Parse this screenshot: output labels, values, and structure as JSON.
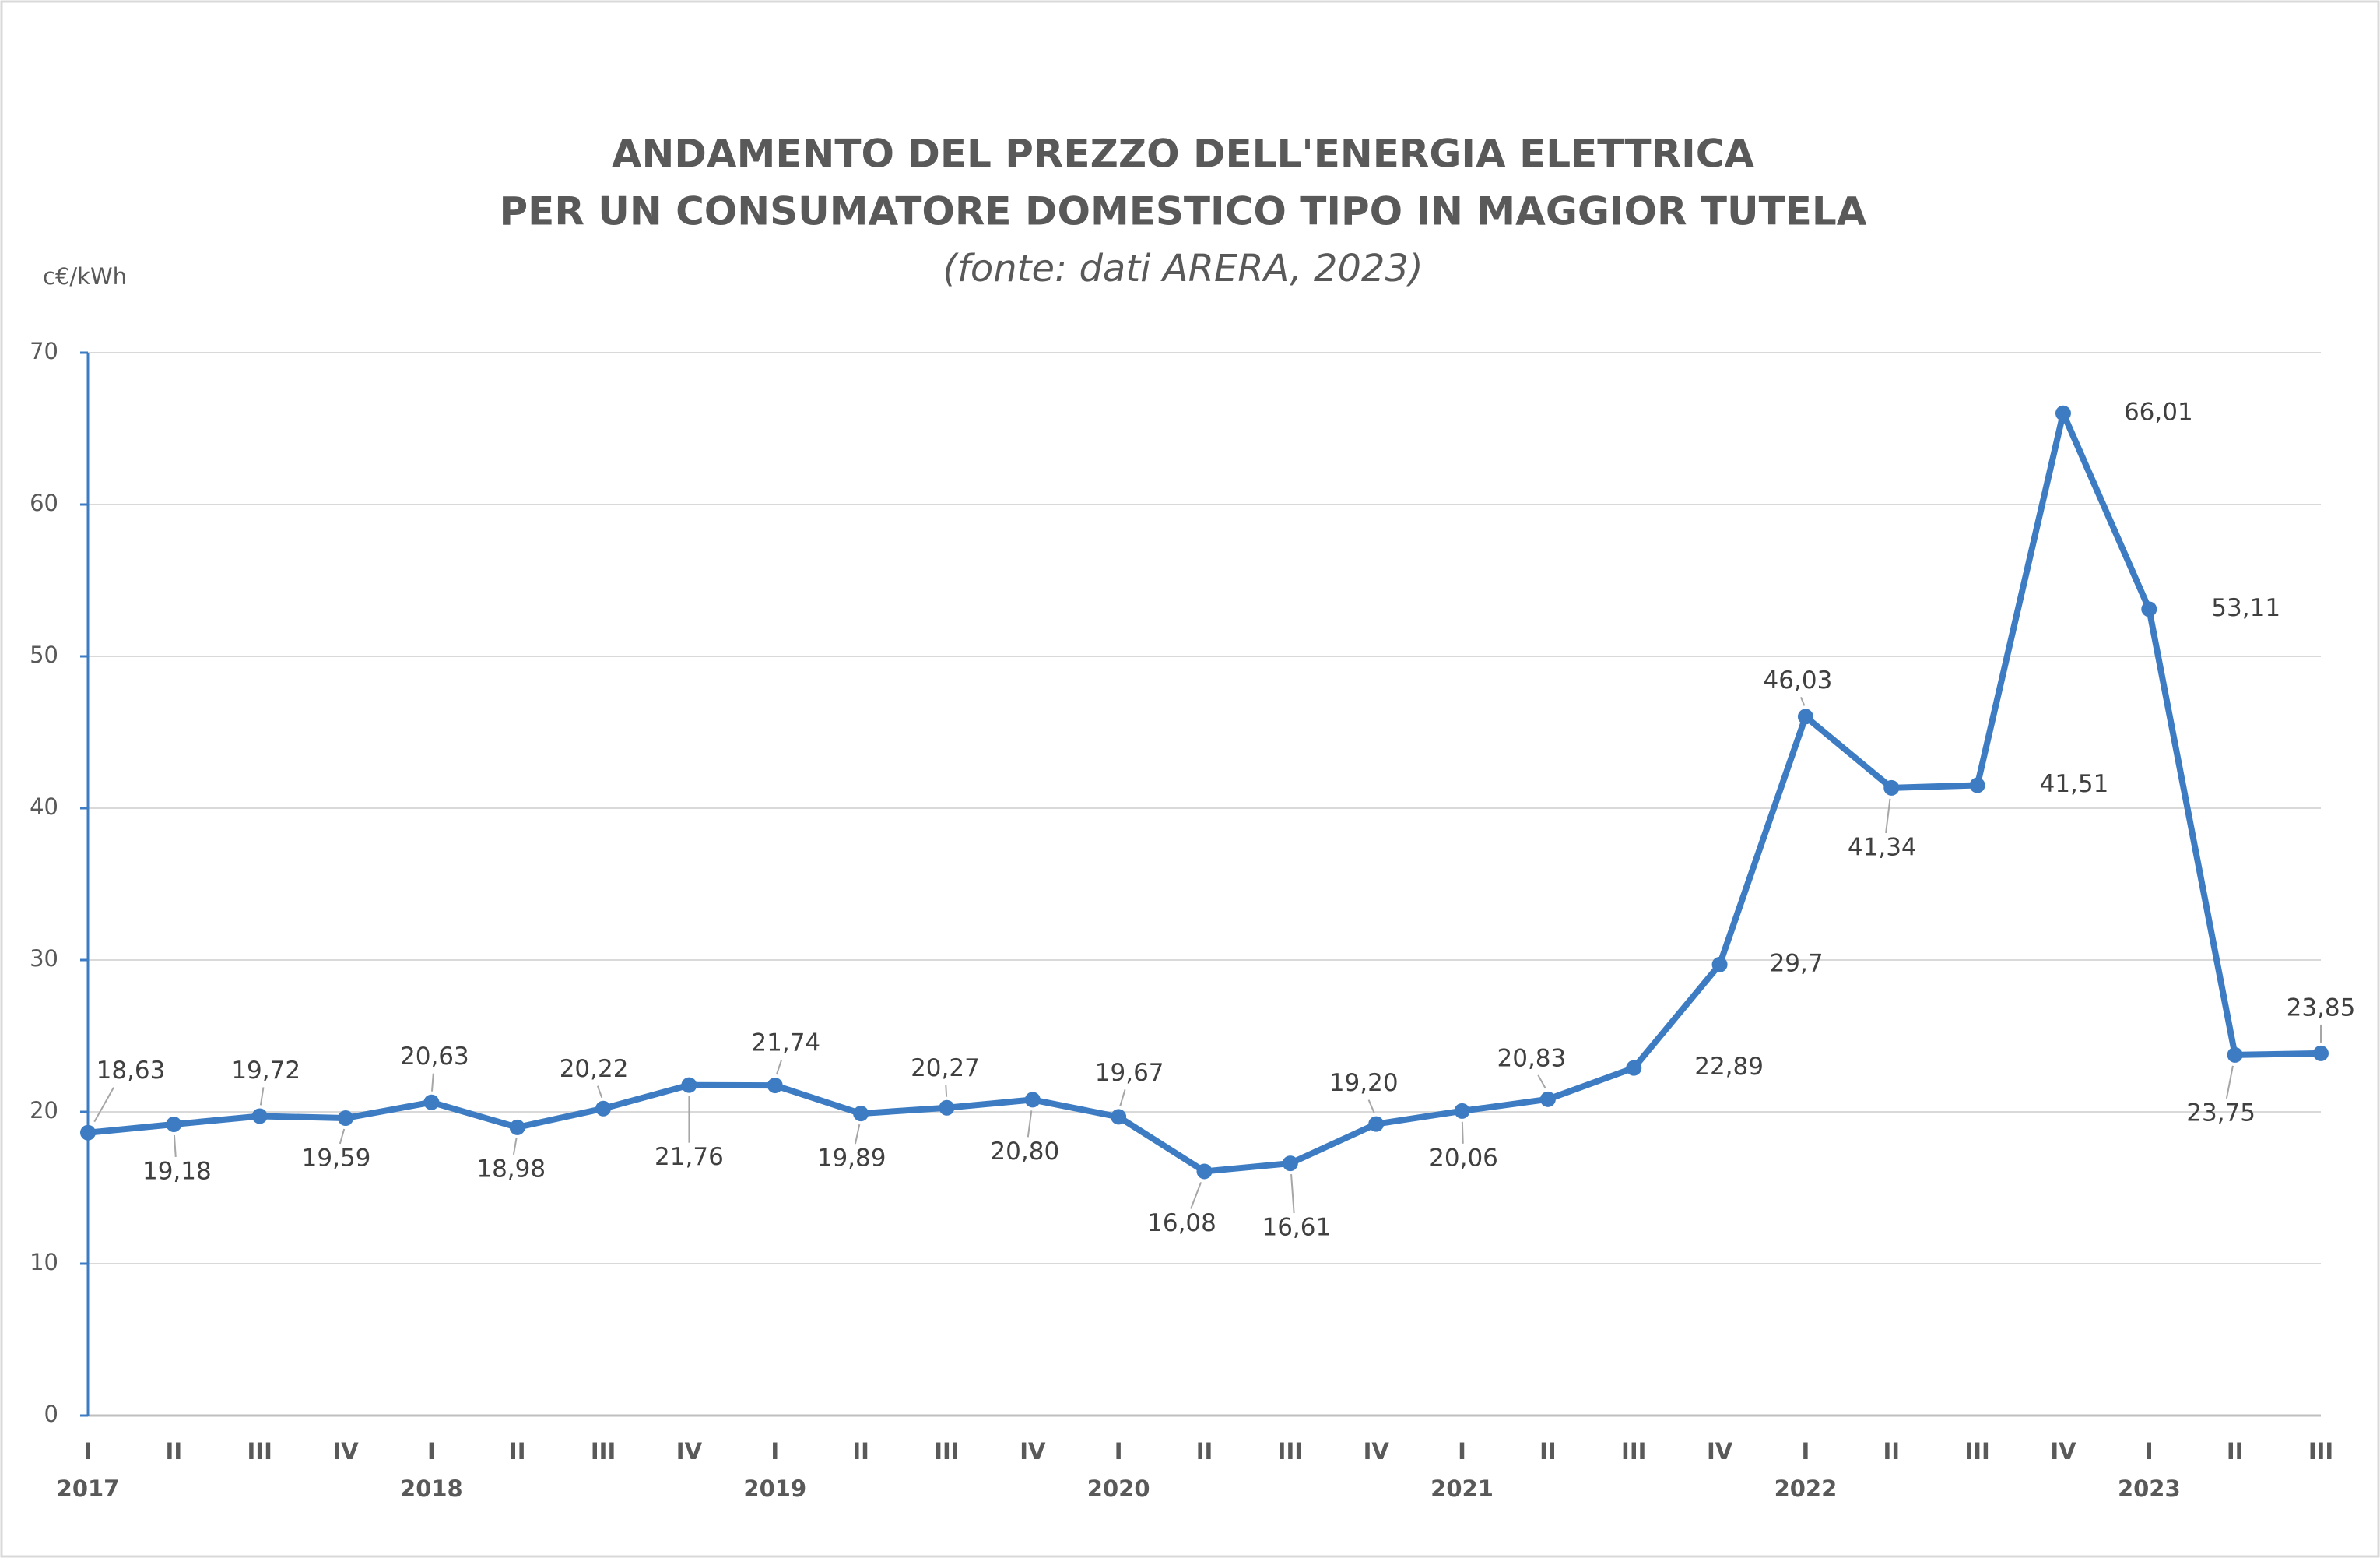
{
  "chart_data": {
    "type": "line",
    "title": [
      "ANDAMENTO DEL PREZZO DELL'ENERGIA ELETTRICA",
      "PER UN CONSUMATORE DOMESTICO TIPO IN MAGGIOR TUTELA"
    ],
    "subtitle": "(fonte: dati ARERA, 2023)",
    "y_label": "c€/kWh",
    "categories": [
      "I",
      "II",
      "III",
      "IV",
      "I",
      "II",
      "III",
      "IV",
      "I",
      "II",
      "III",
      "IV",
      "I",
      "II",
      "III",
      "IV",
      "I",
      "II",
      "III",
      "IV",
      "I",
      "II",
      "III",
      "IV",
      "I",
      "II",
      "III"
    ],
    "years": [
      "2017",
      null,
      null,
      null,
      "2018",
      null,
      null,
      null,
      "2019",
      null,
      null,
      null,
      "2020",
      null,
      null,
      null,
      "2021",
      null,
      null,
      null,
      "2022",
      null,
      null,
      null,
      "2023",
      null,
      null
    ],
    "values": [
      18.63,
      19.18,
      19.72,
      19.59,
      20.63,
      18.98,
      20.22,
      21.76,
      21.74,
      19.89,
      20.27,
      20.8,
      19.67,
      16.08,
      16.61,
      19.2,
      20.06,
      20.83,
      22.89,
      29.7,
      46.03,
      41.34,
      41.51,
      66.01,
      53.11,
      23.75,
      23.85
    ],
    "value_labels": [
      "18,63",
      "19,18",
      "19,72",
      "19,59",
      "20,63",
      "18,98",
      "20,22",
      "21,76",
      "21,74",
      "19,89",
      "20,27",
      "20,80",
      "19,67",
      "16,08",
      "16,61",
      "19,20",
      "20,06",
      "20,83",
      "22,89",
      "29,7",
      "46,03",
      "41,34",
      "41,51",
      "66,01",
      "53,11",
      "23,75",
      "23,85"
    ],
    "color": "#3d7cc3",
    "ylim": [
      0,
      70
    ],
    "yticks": [
      0,
      10,
      20,
      30,
      40,
      50,
      60,
      70
    ],
    "grid": true
  }
}
